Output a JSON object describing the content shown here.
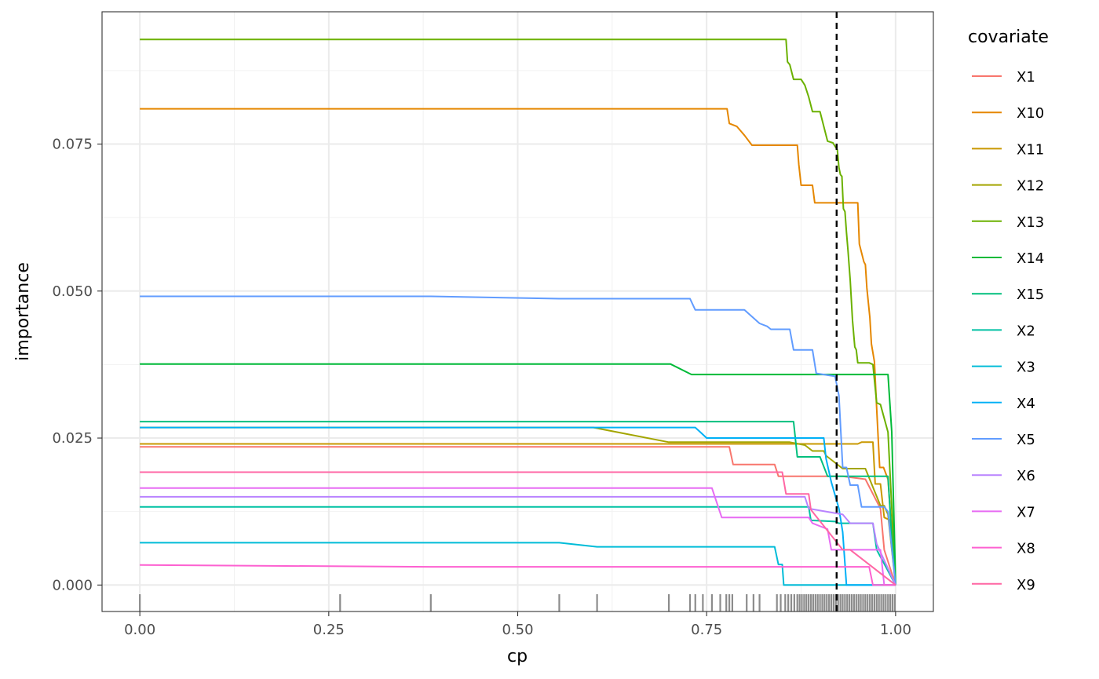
{
  "chart_data": {
    "type": "line",
    "xlabel": "cp",
    "ylabel": "importance",
    "xlim": [
      -0.05,
      1.05
    ],
    "ylim": [
      -0.0045,
      0.0975
    ],
    "x_ticks": [
      0.0,
      0.25,
      0.5,
      0.75,
      1.0
    ],
    "x_tick_labels": [
      "0.00",
      "0.25",
      "0.50",
      "0.75",
      "1.00"
    ],
    "y_ticks": [
      0.0,
      0.025,
      0.05,
      0.075
    ],
    "y_tick_labels": [
      "0.000",
      "0.025",
      "0.050",
      "0.075"
    ],
    "grid": true,
    "vline": {
      "x": 0.922,
      "style": "dashed",
      "color": "#000000"
    },
    "rug": [
      0.0,
      0.265,
      0.385,
      0.555,
      0.605,
      0.7,
      0.728,
      0.735,
      0.745,
      0.757,
      0.768,
      0.776,
      0.78,
      0.784,
      0.803,
      0.812,
      0.82,
      0.843,
      0.848,
      0.854,
      0.858,
      0.862,
      0.866,
      0.87,
      0.873,
      0.876,
      0.879,
      0.882,
      0.885,
      0.888,
      0.891,
      0.894,
      0.897,
      0.9,
      0.903,
      0.906,
      0.909,
      0.912,
      0.915,
      0.918,
      0.921,
      0.924,
      0.927,
      0.93,
      0.933,
      0.936,
      0.939,
      0.942,
      0.945,
      0.948,
      0.951,
      0.954,
      0.957,
      0.96,
      0.963,
      0.966,
      0.969,
      0.972,
      0.975,
      0.978,
      0.981,
      0.984,
      0.987,
      0.99,
      0.993,
      0.996,
      0.999
    ],
    "legend_title": "covariate",
    "legend_position": "right",
    "series": [
      {
        "name": "X1",
        "color": "#F8766D",
        "x": [
          0,
          0.78,
          0.785,
          0.84,
          0.845,
          0.93,
          0.96,
          0.98,
          0.985,
          1.0
        ],
        "y": [
          0.0235,
          0.0235,
          0.0205,
          0.0205,
          0.0185,
          0.0185,
          0.018,
          0.013,
          0.006,
          0.0
        ]
      },
      {
        "name": "X10",
        "color": "#E58700",
        "x": [
          0,
          0.777,
          0.78,
          0.79,
          0.8,
          0.81,
          0.87,
          0.872,
          0.875,
          0.89,
          0.893,
          0.95,
          0.952,
          0.958,
          0.96,
          0.962,
          0.964,
          0.966,
          0.968,
          0.972,
          0.975,
          0.977,
          0.979,
          0.981,
          0.984,
          0.99,
          1.0
        ],
        "y": [
          0.081,
          0.081,
          0.0785,
          0.078,
          0.0765,
          0.0748,
          0.0748,
          0.0715,
          0.068,
          0.068,
          0.065,
          0.065,
          0.058,
          0.055,
          0.0545,
          0.0505,
          0.048,
          0.0455,
          0.041,
          0.038,
          0.03,
          0.025,
          0.02,
          0.02,
          0.02,
          0.018,
          0.0
        ]
      },
      {
        "name": "X11",
        "color": "#C99800",
        "x": [
          0,
          0.9,
          0.905,
          0.95,
          0.955,
          0.97,
          0.973,
          0.98,
          0.985,
          0.993,
          1.0
        ],
        "y": [
          0.024,
          0.024,
          0.024,
          0.024,
          0.0243,
          0.0243,
          0.0172,
          0.0172,
          0.0115,
          0.011,
          0.0
        ]
      },
      {
        "name": "X12",
        "color": "#A3A500",
        "x": [
          0,
          0.6,
          0.7,
          0.86,
          0.88,
          0.89,
          0.905,
          0.908,
          0.93,
          0.96,
          0.98,
          0.985,
          0.99,
          1.0
        ],
        "y": [
          0.0268,
          0.0268,
          0.0243,
          0.0243,
          0.0238,
          0.0228,
          0.0228,
          0.022,
          0.0198,
          0.0198,
          0.0135,
          0.0135,
          0.012,
          0.0
        ]
      },
      {
        "name": "X13",
        "color": "#6BB100",
        "x": [
          0,
          0.855,
          0.857,
          0.86,
          0.865,
          0.875,
          0.88,
          0.885,
          0.89,
          0.9,
          0.91,
          0.917,
          0.923,
          0.925,
          0.927,
          0.929,
          0.931,
          0.933,
          0.935,
          0.937,
          0.94,
          0.943,
          0.946,
          0.948,
          0.95,
          0.955,
          0.96,
          0.965,
          0.97,
          0.975,
          0.98,
          0.99,
          1.0
        ],
        "y": [
          0.0928,
          0.0928,
          0.089,
          0.0885,
          0.086,
          0.086,
          0.085,
          0.083,
          0.0805,
          0.0805,
          0.0755,
          0.0752,
          0.074,
          0.071,
          0.0698,
          0.0695,
          0.064,
          0.0635,
          0.06,
          0.057,
          0.0518,
          0.045,
          0.0405,
          0.04,
          0.0378,
          0.0378,
          0.0378,
          0.0378,
          0.0375,
          0.031,
          0.0307,
          0.026,
          0.0
        ]
      },
      {
        "name": "X14",
        "color": "#00BA38",
        "x": [
          0,
          0.702,
          0.73,
          0.99,
          0.995,
          1.0
        ],
        "y": [
          0.0376,
          0.0376,
          0.0358,
          0.0358,
          0.026,
          0.0
        ]
      },
      {
        "name": "X15",
        "color": "#00BF7D",
        "x": [
          0,
          0.865,
          0.87,
          0.9,
          0.91,
          0.99,
          0.995,
          1.0
        ],
        "y": [
          0.0278,
          0.0278,
          0.0218,
          0.0218,
          0.0185,
          0.0185,
          0.008,
          0.0
        ]
      },
      {
        "name": "X2",
        "color": "#00C1A3",
        "x": [
          0,
          0.885,
          0.888,
          0.92,
          0.925,
          0.97,
          0.975,
          1.0
        ],
        "y": [
          0.0133,
          0.0133,
          0.011,
          0.0108,
          0.0105,
          0.0105,
          0.006,
          0.0
        ]
      },
      {
        "name": "X3",
        "color": "#00BCD8",
        "x": [
          0,
          0.555,
          0.605,
          0.84,
          0.845,
          0.85,
          0.852,
          0.86,
          0.97,
          1.0
        ],
        "y": [
          0.0072,
          0.0072,
          0.0065,
          0.0065,
          0.0035,
          0.0035,
          0.0,
          0.0,
          0.0,
          0.0
        ]
      },
      {
        "name": "X4",
        "color": "#00B0F6",
        "x": [
          0,
          0.385,
          0.735,
          0.75,
          0.905,
          0.908,
          0.915,
          0.925,
          0.93,
          0.935,
          0.94,
          1.0
        ],
        "y": [
          0.0268,
          0.0268,
          0.0268,
          0.025,
          0.025,
          0.0215,
          0.0175,
          0.013,
          0.009,
          0.0,
          0.0,
          0.0
        ]
      },
      {
        "name": "X5",
        "color": "#619CFF",
        "x": [
          0,
          0.385,
          0.555,
          0.728,
          0.735,
          0.8,
          0.82,
          0.83,
          0.835,
          0.86,
          0.865,
          0.89,
          0.895,
          0.92,
          0.925,
          0.93,
          0.935,
          0.94,
          0.95,
          0.955,
          0.965,
          0.97,
          0.985,
          0.99,
          1.0
        ],
        "y": [
          0.0491,
          0.0491,
          0.0487,
          0.0487,
          0.0468,
          0.0468,
          0.0445,
          0.044,
          0.0435,
          0.0435,
          0.04,
          0.04,
          0.036,
          0.0355,
          0.0322,
          0.02,
          0.02,
          0.017,
          0.017,
          0.0133,
          0.0133,
          0.0133,
          0.0133,
          0.0125,
          0.0
        ]
      },
      {
        "name": "X6",
        "color": "#B983FF",
        "x": [
          0,
          0.88,
          0.885,
          0.93,
          0.94,
          0.97,
          0.975,
          1.0
        ],
        "y": [
          0.015,
          0.015,
          0.013,
          0.012,
          0.0105,
          0.0105,
          0.007,
          0.0
        ]
      },
      {
        "name": "X7",
        "color": "#E76BF3",
        "x": [
          0,
          0.757,
          0.77,
          0.885,
          0.89,
          0.91,
          0.915,
          0.98,
          0.985,
          1.0
        ],
        "y": [
          0.0165,
          0.0165,
          0.0115,
          0.0115,
          0.0105,
          0.0095,
          0.006,
          0.006,
          0.0,
          0.0
        ]
      },
      {
        "name": "X8",
        "color": "#FD61D1",
        "x": [
          0,
          0.385,
          0.965,
          0.97,
          0.98,
          1.0
        ],
        "y": [
          0.0034,
          0.0031,
          0.0031,
          0.0,
          0.0,
          0.0
        ]
      },
      {
        "name": "X9",
        "color": "#FF67A4",
        "x": [
          0,
          0.85,
          0.855,
          0.885,
          0.888,
          0.93,
          0.94,
          1.0
        ],
        "y": [
          0.0192,
          0.0192,
          0.0155,
          0.0155,
          0.0128,
          0.006,
          0.006,
          0.0
        ]
      }
    ]
  }
}
